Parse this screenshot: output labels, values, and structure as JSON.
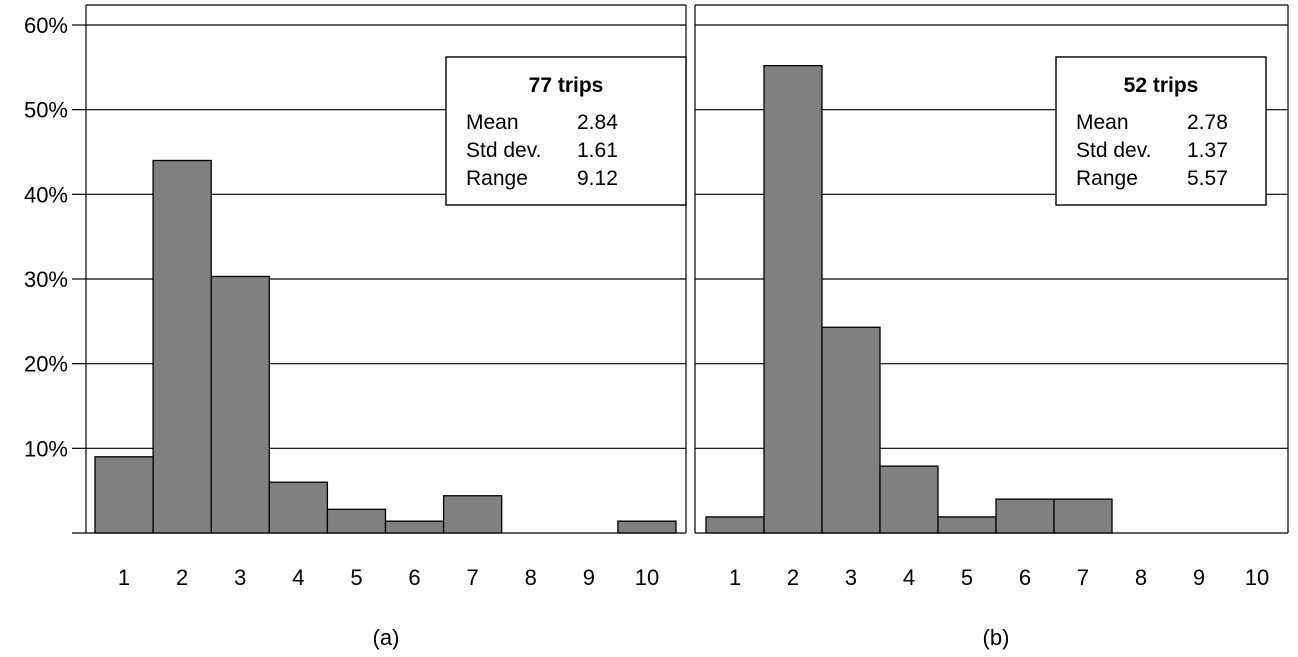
{
  "colors": {
    "bar_fill": "#808080",
    "bar_stroke": "#000000",
    "grid": "#000000"
  },
  "chart_data": [
    {
      "type": "bar",
      "caption": "(a)",
      "categories": [
        "1",
        "2",
        "3",
        "4",
        "5",
        "6",
        "7",
        "8",
        "9",
        "10"
      ],
      "values": [
        9,
        44,
        30.3,
        6,
        2.8,
        1.4,
        4.4,
        0,
        0,
        1.4
      ],
      "ylim": [
        0,
        60
      ],
      "y_ticks": [
        10,
        20,
        30,
        40,
        50,
        60
      ],
      "y_tick_labels": [
        "10%",
        "20%",
        "30%",
        "40%",
        "50%",
        "60%"
      ],
      "grid": true,
      "stats_box": {
        "placement": "top-right",
        "title": "77 trips",
        "rows": [
          {
            "label": "Mean",
            "value": "2.84"
          },
          {
            "label": "Std dev.",
            "value": "1.61"
          },
          {
            "label": "Range",
            "value": "9.12"
          }
        ]
      }
    },
    {
      "type": "bar",
      "caption": "(b)",
      "categories": [
        "1",
        "2",
        "3",
        "4",
        "5",
        "6",
        "7",
        "8",
        "9",
        "10"
      ],
      "values": [
        1.9,
        55.2,
        24.3,
        7.9,
        1.9,
        4,
        4,
        0,
        0,
        0
      ],
      "ylim": [
        0,
        60
      ],
      "y_ticks": [
        10,
        20,
        30,
        40,
        50,
        60
      ],
      "grid": true,
      "stats_box": {
        "placement": "top-right",
        "title": "52 trips",
        "rows": [
          {
            "label": "Mean",
            "value": "2.78"
          },
          {
            "label": "Std dev.",
            "value": "1.37"
          },
          {
            "label": "Range",
            "value": "5.57"
          }
        ]
      }
    }
  ]
}
